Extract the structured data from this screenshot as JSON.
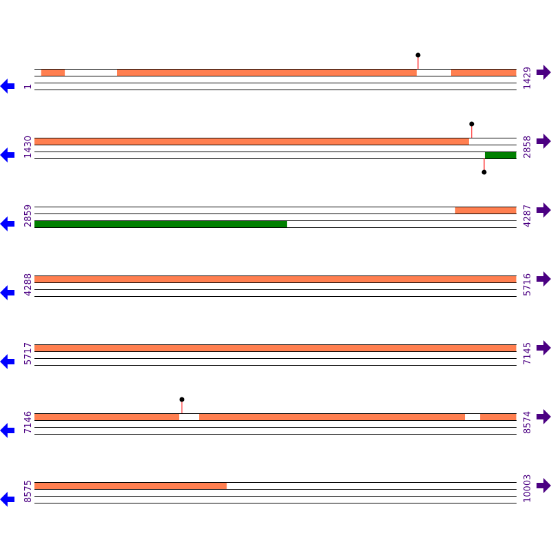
{
  "colors": {
    "forward_feature": "#ff7f50",
    "reverse_feature": "#008000",
    "marker_stem": "#ff0000",
    "marker_head": "#000000",
    "label": "#4b0082",
    "left_arrow": "#0000ff",
    "right_arrow": "#4b0082",
    "strand_line": "#000000"
  },
  "icons": {
    "left": "arrow-left-icon",
    "right": "arrow-right-icon"
  },
  "bp_per_row": 1429,
  "rows": [
    {
      "start": 1,
      "end": 1429,
      "top": [
        [
          21,
          91
        ],
        [
          246,
          1134
        ],
        [
          1236,
          1429
        ]
      ],
      "bottom": [],
      "markers_top": [
        1138
      ],
      "markers_bottom": [],
      "start_label": "1",
      "end_label": "1429"
    },
    {
      "start": 1430,
      "end": 2858,
      "top": [
        [
          1430,
          2718
        ]
      ],
      "bottom": [
        [
          2765,
          2858
        ]
      ],
      "markers_top": [
        2726
      ],
      "markers_bottom": [
        2763
      ],
      "start_label": "1430",
      "end_label": "2858"
    },
    {
      "start": 2859,
      "end": 4287,
      "top": [
        [
          4106,
          4287
        ]
      ],
      "bottom": [
        [
          2859,
          3608
        ]
      ],
      "markers_top": [],
      "markers_bottom": [],
      "start_label": "2859",
      "end_label": "4287"
    },
    {
      "start": 4288,
      "end": 5716,
      "top": [
        [
          4288,
          5716
        ]
      ],
      "bottom": [],
      "markers_top": [],
      "markers_bottom": [],
      "start_label": "4288",
      "end_label": "5716"
    },
    {
      "start": 5717,
      "end": 7145,
      "top": [
        [
          5717,
          7145
        ]
      ],
      "bottom": [],
      "markers_top": [],
      "markers_bottom": [],
      "start_label": "5717",
      "end_label": "7145"
    },
    {
      "start": 7146,
      "end": 8574,
      "top": [
        [
          7146,
          7575
        ],
        [
          7634,
          8422
        ],
        [
          8467,
          8574
        ]
      ],
      "bottom": [],
      "markers_top": [
        7583
      ],
      "markers_bottom": [],
      "start_label": "7146",
      "end_label": "8574"
    },
    {
      "start": 8575,
      "end": 10003,
      "top": [
        [
          8575,
          9145
        ]
      ],
      "bottom": [],
      "markers_top": [],
      "markers_bottom": [],
      "start_label": "8575",
      "end_label": "10003"
    }
  ]
}
